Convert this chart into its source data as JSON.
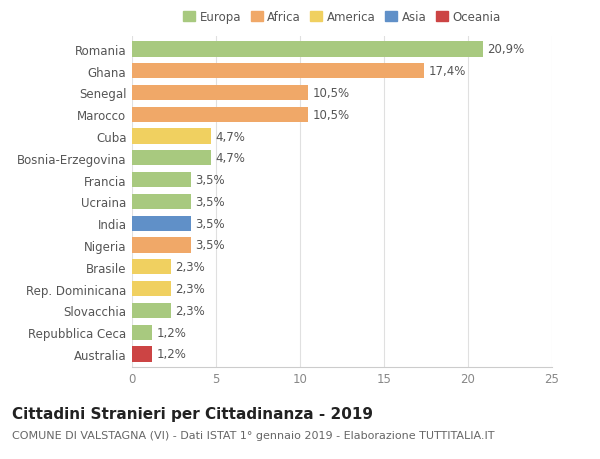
{
  "countries": [
    "Romania",
    "Ghana",
    "Senegal",
    "Marocco",
    "Cuba",
    "Bosnia-Erzegovina",
    "Francia",
    "Ucraina",
    "India",
    "Nigeria",
    "Brasile",
    "Rep. Dominicana",
    "Slovacchia",
    "Repubblica Ceca",
    "Australia"
  ],
  "values": [
    20.9,
    17.4,
    10.5,
    10.5,
    4.7,
    4.7,
    3.5,
    3.5,
    3.5,
    3.5,
    2.3,
    2.3,
    2.3,
    1.2,
    1.2
  ],
  "labels": [
    "20,9%",
    "17,4%",
    "10,5%",
    "10,5%",
    "4,7%",
    "4,7%",
    "3,5%",
    "3,5%",
    "3,5%",
    "3,5%",
    "2,3%",
    "2,3%",
    "2,3%",
    "1,2%",
    "1,2%"
  ],
  "continents": [
    "Europa",
    "Africa",
    "Africa",
    "Africa",
    "America",
    "Europa",
    "Europa",
    "Europa",
    "Asia",
    "Africa",
    "America",
    "America",
    "Europa",
    "Europa",
    "Oceania"
  ],
  "continent_colors": {
    "Europa": "#a8c97f",
    "Africa": "#f0a868",
    "America": "#f0d060",
    "Asia": "#6090c8",
    "Oceania": "#cc4444"
  },
  "legend_order": [
    "Europa",
    "Africa",
    "America",
    "Asia",
    "Oceania"
  ],
  "xlim": [
    0,
    25
  ],
  "xticks": [
    0,
    5,
    10,
    15,
    20,
    25
  ],
  "title": "Cittadini Stranieri per Cittadinanza - 2019",
  "subtitle": "COMUNE DI VALSTAGNA (VI) - Dati ISTAT 1° gennaio 2019 - Elaborazione TUTTITALIA.IT",
  "background_color": "#ffffff",
  "grid_color": "#e0e0e0",
  "bar_height": 0.7,
  "label_fontsize": 8.5,
  "title_fontsize": 11,
  "subtitle_fontsize": 8,
  "ytick_fontsize": 8.5,
  "xtick_fontsize": 8.5
}
